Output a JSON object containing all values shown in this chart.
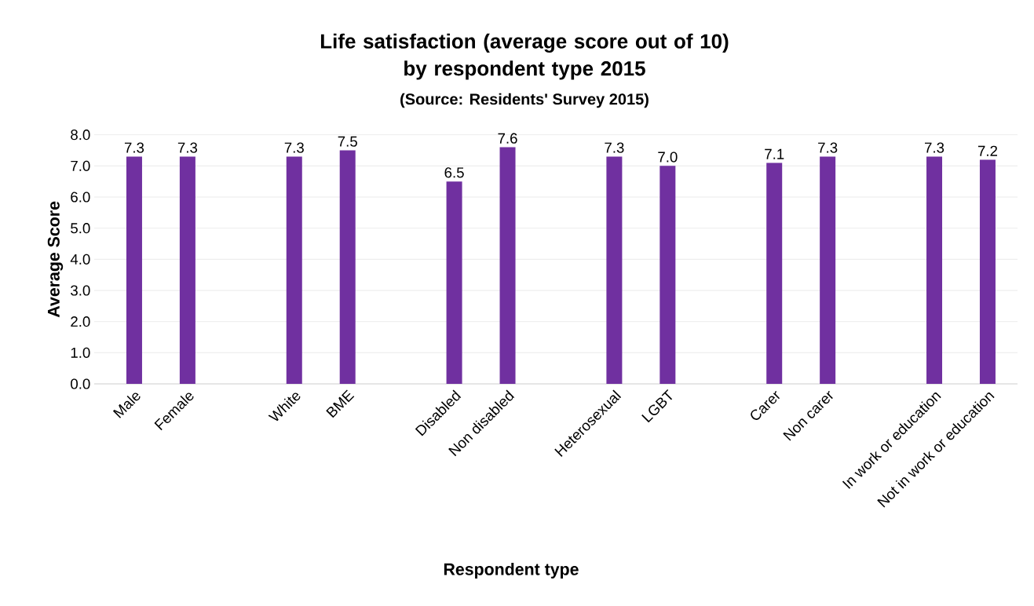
{
  "chart_data": {
    "type": "bar",
    "title": "Life satisfaction (average score out of 10)\nby respondent type 2015",
    "subtitle": "(Source: Residents' Survey 2015)",
    "xlabel": "Respondent type",
    "ylabel": "Average Score",
    "categories": [
      "Male",
      "Female",
      null,
      "White",
      "BME",
      null,
      "Disabled",
      "Non disabled",
      null,
      "Heterosexual",
      "LGBT",
      null,
      "Carer",
      "Non carer",
      null,
      "In work or education",
      "Not in work or education"
    ],
    "values": [
      7.3,
      7.3,
      null,
      7.3,
      7.5,
      null,
      6.5,
      7.6,
      null,
      7.3,
      7.0,
      null,
      7.1,
      7.3,
      null,
      7.3,
      7.2
    ],
    "value_labels": [
      "7.3",
      "7.3",
      null,
      "7.3",
      "7.5",
      null,
      "6.5",
      "7.6",
      null,
      "7.3",
      "7.0",
      null,
      "7.1",
      "7.3",
      null,
      "7.3",
      "7.2"
    ],
    "color": "#7030a0",
    "ylim": [
      0,
      8
    ],
    "yticks": [
      {
        "value": 0,
        "label": "0.0"
      },
      {
        "value": 1,
        "label": "1.0"
      },
      {
        "value": 2,
        "label": "2.0"
      },
      {
        "value": 3,
        "label": "3.0"
      },
      {
        "value": 4,
        "label": "4.0"
      },
      {
        "value": 5,
        "label": "5.0"
      },
      {
        "value": 6,
        "label": "6.0"
      },
      {
        "value": 7,
        "label": "7.0"
      },
      {
        "value": 8,
        "label": "8.0"
      }
    ],
    "grid": "y"
  }
}
